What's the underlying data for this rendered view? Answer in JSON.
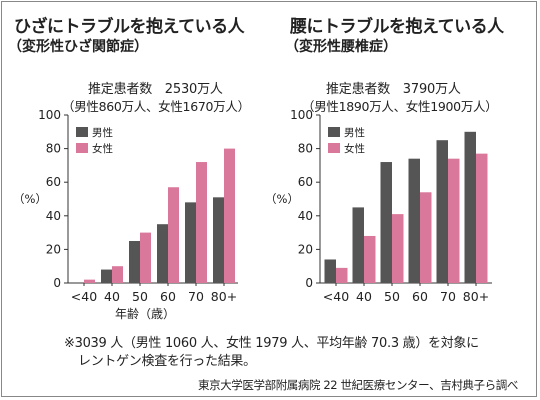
{
  "colors": {
    "male": "#555555",
    "female": "#d9789a",
    "axis": "#333333"
  },
  "left": {
    "title": "ひざにトラブルを抱えている人",
    "subtitle": "（変形性ひざ関節症）",
    "patients_line": "推定患者数　2530万人",
    "breakdown_line": "（男性860万人、女性1670万人）"
  },
  "right": {
    "title": "腰にトラブルを抱えている人",
    "subtitle": "（変形性腰椎症）",
    "patients_line": "推定患者数　3790万人",
    "breakdown_line": "（男性1890万人、女性1900万人）"
  },
  "chart_data": [
    {
      "type": "bar",
      "categories": [
        "<40",
        "40",
        "50",
        "60",
        "70",
        "80+"
      ],
      "series": [
        {
          "name": "男性",
          "values": [
            0,
            8,
            25,
            35,
            48,
            51
          ]
        },
        {
          "name": "女性",
          "values": [
            2,
            10,
            30,
            57,
            72,
            80
          ]
        }
      ],
      "title": "ひざにトラブルを抱えている人",
      "xlabel": "年齢（歳）",
      "ylabel": "（%）",
      "ylim": [
        0,
        100
      ],
      "yticks": [
        0,
        20,
        40,
        60,
        80,
        100
      ],
      "legend_position": "top-left",
      "grid": false
    },
    {
      "type": "bar",
      "categories": [
        "<40",
        "40",
        "50",
        "60",
        "70",
        "80+"
      ],
      "series": [
        {
          "name": "男性",
          "values": [
            14,
            45,
            72,
            74,
            85,
            90
          ]
        },
        {
          "name": "女性",
          "values": [
            9,
            28,
            41,
            54,
            74,
            77
          ]
        }
      ],
      "title": "腰にトラブルを抱えている人",
      "xlabel": "",
      "ylabel": "（%）",
      "ylim": [
        0,
        100
      ],
      "yticks": [
        0,
        20,
        40,
        60,
        80,
        100
      ],
      "legend_position": "top-left",
      "grid": false
    }
  ],
  "note_line1": "※3039 人（男性 1060 人、女性 1979 人、平均年齢 70.3 歳）を対象に",
  "note_line2": "レントゲン検査を行った結果。",
  "source": "東京大学医学部附属病院 22 世紀医療センター、吉村典子ら調べ"
}
